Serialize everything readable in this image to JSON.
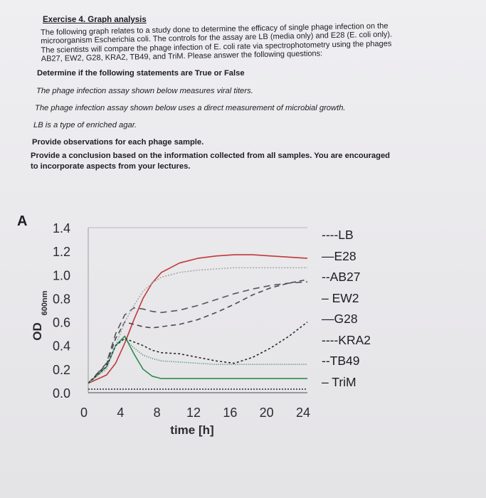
{
  "exercise": {
    "title": "Exercise 4. Graph analysis",
    "intro_lines": [
      "The following graph relates to a study done to determine the efficacy of single phage infection on the",
      "microorganism Escherichia coli. The controls for the assay are LB (media only) and E28 (E. coli only).",
      "The scientists will compare the phage infection of E. coli rate via spectrophotometry using the phages",
      "AB27, EW2, G28, KRA2, TB49, and TriM. Please answer the following questions:"
    ],
    "heading_tf": "Determine if the following statements are True or False",
    "statements": [
      "The phage infection assay shown below measures viral titers.",
      "The phage infection assay shown below uses a direct measurement of microbial growth.",
      "LB is a type of enriched agar."
    ],
    "task_observations": "Provide observations for each phage sample.",
    "task_conclusion_lines": [
      "Provide a conclusion based on the information collected from all samples. You are encouraged",
      "to incorporate aspects from your lectures."
    ]
  },
  "figure": {
    "panel_label": "A",
    "legend": [
      "----LB",
      "—E28",
      "--AB27",
      "– EW2",
      "—G28",
      "----KRA2",
      "--TB49",
      "– TriM"
    ]
  },
  "chart_data": {
    "type": "line",
    "xlabel": "time [h]",
    "ylabel": "OD 600nm",
    "xlim": [
      0,
      24
    ],
    "ylim": [
      0,
      1.4
    ],
    "x_ticks": [
      "0",
      "4",
      "8",
      "12",
      "16",
      "20",
      "24"
    ],
    "y_ticks": [
      "0.0",
      "0.2",
      "0.4",
      "0.6",
      "0.8",
      "1.0",
      "1.2",
      "1.4"
    ],
    "x": [
      0,
      2,
      3,
      4,
      5,
      6,
      7,
      8,
      10,
      12,
      14,
      16,
      18,
      20,
      22,
      24
    ],
    "series": [
      {
        "name": "LB",
        "color": "#2a2a2a",
        "dash": "2,2",
        "values": [
          0.03,
          0.03,
          0.03,
          0.03,
          0.03,
          0.03,
          0.03,
          0.03,
          0.03,
          0.03,
          0.03,
          0.03,
          0.03,
          0.03,
          0.03,
          0.03
        ]
      },
      {
        "name": "E28",
        "color": "#c0393b",
        "dash": "",
        "values": [
          0.08,
          0.15,
          0.25,
          0.42,
          0.62,
          0.8,
          0.93,
          1.02,
          1.1,
          1.14,
          1.16,
          1.17,
          1.17,
          1.16,
          1.15,
          1.14
        ]
      },
      {
        "name": "AB27",
        "color": "#555560",
        "dash": "9,6",
        "values": [
          0.08,
          0.25,
          0.5,
          0.66,
          0.72,
          0.71,
          0.69,
          0.68,
          0.7,
          0.74,
          0.79,
          0.84,
          0.88,
          0.91,
          0.93,
          0.94
        ]
      },
      {
        "name": "EW2",
        "color": "#4a4a55",
        "dash": "7,5",
        "values": [
          0.08,
          0.24,
          0.46,
          0.6,
          0.58,
          0.56,
          0.55,
          0.56,
          0.58,
          0.62,
          0.68,
          0.75,
          0.83,
          0.89,
          0.93,
          0.96
        ]
      },
      {
        "name": "G28",
        "color": "#2f8a55",
        "dash": "",
        "values": [
          0.08,
          0.22,
          0.4,
          0.48,
          0.33,
          0.2,
          0.14,
          0.12,
          0.12,
          0.12,
          0.12,
          0.12,
          0.12,
          0.12,
          0.12,
          0.12
        ]
      },
      {
        "name": "KRA2",
        "color": "#a9a9ad",
        "dash": "2,2",
        "values": [
          0.08,
          0.2,
          0.4,
          0.6,
          0.74,
          0.86,
          0.93,
          0.98,
          1.02,
          1.04,
          1.05,
          1.06,
          1.06,
          1.06,
          1.06,
          1.06
        ]
      },
      {
        "name": "TB49",
        "color": "#2a2a30",
        "dash": "3,3",
        "values": [
          0.08,
          0.22,
          0.4,
          0.46,
          0.43,
          0.4,
          0.36,
          0.34,
          0.33,
          0.3,
          0.27,
          0.25,
          0.3,
          0.38,
          0.48,
          0.6
        ]
      },
      {
        "name": "TriM",
        "color": "#2f8a55",
        "dash": "1,2",
        "values": [
          0.08,
          0.22,
          0.4,
          0.46,
          0.38,
          0.32,
          0.29,
          0.27,
          0.26,
          0.25,
          0.24,
          0.24,
          0.24,
          0.24,
          0.24,
          0.24
        ]
      }
    ]
  }
}
